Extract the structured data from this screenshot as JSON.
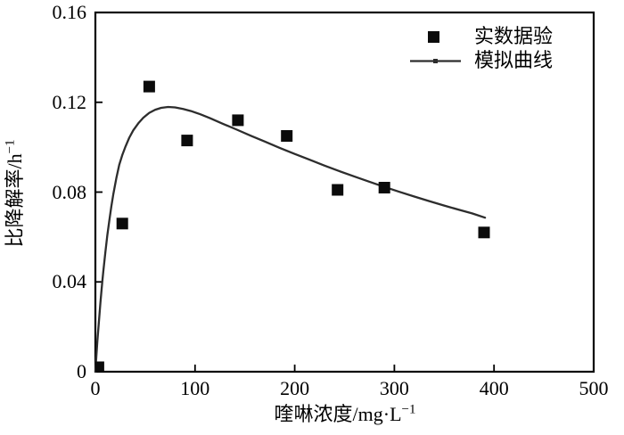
{
  "figure": {
    "background": "#ffffff",
    "frame_color": "#000000",
    "text_color": "#000000"
  },
  "chart_data": {
    "type": "line+scatter",
    "title": "",
    "xlabel": "喹啉浓度/mg·L⁻¹",
    "xlabel_main": "喹啉浓度/mg·L",
    "xlabel_sup": "−1",
    "ylabel": "比降解率/h⁻¹",
    "ylabel_main": "比降解率/h",
    "ylabel_sup": "−1",
    "xlim": [
      0,
      500
    ],
    "ylim": [
      0,
      0.16
    ],
    "xtick_values": [
      0,
      100,
      200,
      300,
      400,
      500
    ],
    "xtick_labels": [
      "0",
      "100",
      "200",
      "300",
      "400",
      "500"
    ],
    "ytick_values": [
      0,
      0.04,
      0.08,
      0.12,
      0.16
    ],
    "ytick_labels": [
      "0",
      "0.04",
      "0.08",
      "0.12",
      "0.16"
    ],
    "grid": false,
    "legend_position": "top-right-inside",
    "series": [
      {
        "name": "实数据验",
        "type": "scatter",
        "marker": "filled-square",
        "color": "#0b0b0b",
        "points": [
          [
            3,
            0.002
          ],
          [
            27,
            0.066
          ],
          [
            54,
            0.127
          ],
          [
            92,
            0.103
          ],
          [
            143,
            0.112
          ],
          [
            192,
            0.105
          ],
          [
            243,
            0.081
          ],
          [
            290,
            0.082
          ],
          [
            390,
            0.062
          ]
        ]
      },
      {
        "name": "模拟曲线",
        "type": "line",
        "marker": "line-with-dot",
        "color": "#2d2d2d",
        "points": [
          [
            0,
            0
          ],
          [
            1,
            0.007
          ],
          [
            2,
            0.0135
          ],
          [
            3,
            0.0195
          ],
          [
            4,
            0.025
          ],
          [
            5,
            0.0305
          ],
          [
            6,
            0.0355
          ],
          [
            7,
            0.0403
          ],
          [
            8,
            0.0447
          ],
          [
            10,
            0.0532
          ],
          [
            12,
            0.0608
          ],
          [
            14,
            0.0675
          ],
          [
            16,
            0.0736
          ],
          [
            18,
            0.079
          ],
          [
            21,
            0.0862
          ],
          [
            24,
            0.0922
          ],
          [
            27,
            0.0965
          ],
          [
            30,
            0.1
          ],
          [
            34,
            0.1042
          ],
          [
            38,
            0.1075
          ],
          [
            43,
            0.1106
          ],
          [
            48,
            0.1131
          ],
          [
            54,
            0.1153
          ],
          [
            60,
            0.1167
          ],
          [
            66,
            0.1175
          ],
          [
            73,
            0.1179
          ],
          [
            80,
            0.1177
          ],
          [
            88,
            0.117
          ],
          [
            96,
            0.1161
          ],
          [
            105,
            0.1147
          ],
          [
            115,
            0.1129
          ],
          [
            128,
            0.1104
          ],
          [
            142,
            0.1078
          ],
          [
            156,
            0.1051
          ],
          [
            170,
            0.1025
          ],
          [
            185,
            0.0997
          ],
          [
            200,
            0.097
          ],
          [
            215,
            0.0944
          ],
          [
            230,
            0.0918
          ],
          [
            245,
            0.0893
          ],
          [
            260,
            0.0869
          ],
          [
            275,
            0.0846
          ],
          [
            290,
            0.0823
          ],
          [
            305,
            0.0801
          ],
          [
            320,
            0.078
          ],
          [
            335,
            0.076
          ],
          [
            350,
            0.074
          ],
          [
            365,
            0.0721
          ],
          [
            378,
            0.0705
          ],
          [
            391,
            0.0686
          ]
        ]
      }
    ]
  }
}
